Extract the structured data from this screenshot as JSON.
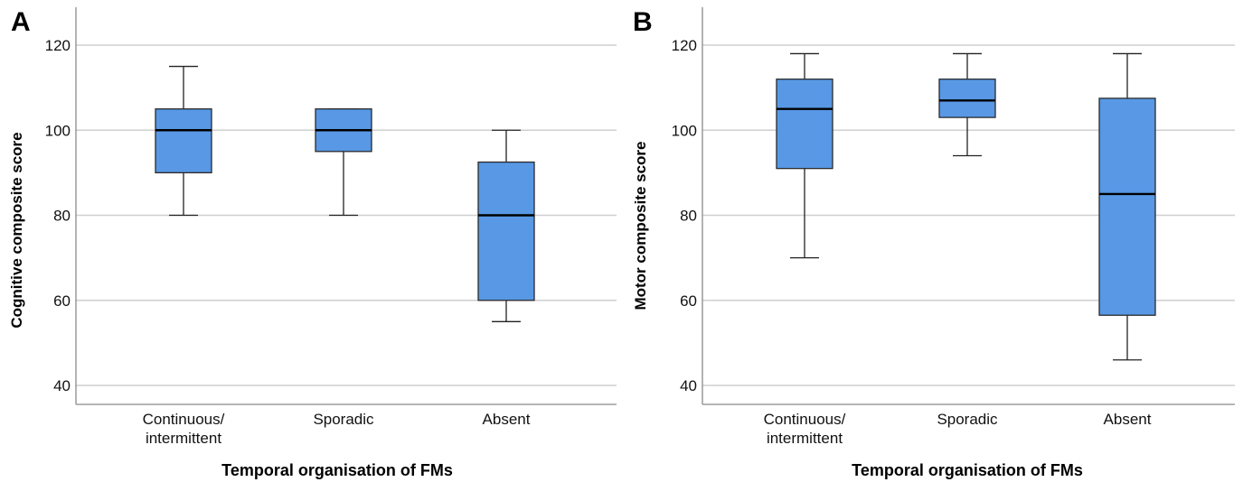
{
  "chart_data": [
    {
      "type": "box",
      "panel_label": "A",
      "xlabel": "Temporal organisation of FMs",
      "ylabel": "Cognitive composite score",
      "ylim": [
        38,
        124
      ],
      "yticks": [
        40,
        60,
        80,
        100,
        120
      ],
      "grid": true,
      "box_color": "#5898E5",
      "categories": [
        "Continuous/\nintermittent",
        "Sporadic",
        "Absent"
      ],
      "boxes": [
        {
          "min": 80,
          "q1": 90,
          "median": 100,
          "q3": 105,
          "max": 115
        },
        {
          "min": 80,
          "q1": 95,
          "median": 100,
          "q3": 105,
          "max": 105
        },
        {
          "min": 55,
          "q1": 60,
          "median": 80,
          "q3": 92.5,
          "max": 100
        }
      ]
    },
    {
      "type": "box",
      "panel_label": "B",
      "xlabel": "Temporal organisation of FMs",
      "ylabel": "Motor composite score",
      "ylim": [
        38,
        124
      ],
      "yticks": [
        40,
        60,
        80,
        100,
        120
      ],
      "grid": true,
      "box_color": "#5898E5",
      "categories": [
        "Continuous/\nintermittent",
        "Sporadic",
        "Absent"
      ],
      "boxes": [
        {
          "min": 70,
          "q1": 91,
          "median": 105,
          "q3": 112,
          "max": 118
        },
        {
          "min": 94,
          "q1": 103,
          "median": 107,
          "q3": 112,
          "max": 118
        },
        {
          "min": 46,
          "q1": 56.5,
          "median": 85,
          "q3": 107.5,
          "max": 118
        }
      ]
    }
  ]
}
